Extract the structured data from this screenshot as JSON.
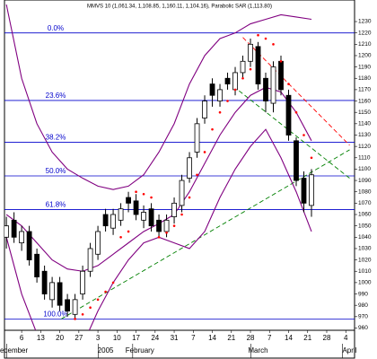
{
  "chart_data": {
    "type": "candlestick",
    "title": "MMVS 10 (1,061.34, 1,108.85, 1,160.11, 1,104.16), Parabolic SAR (1,113.80)",
    "xlim": [
      -4.5,
      87.3
    ],
    "ylim": [
      958,
      1249
    ],
    "yticks": [
      960,
      970,
      980,
      990,
      1000,
      1010,
      1020,
      1030,
      1040,
      1050,
      1060,
      1070,
      1080,
      1090,
      1100,
      1110,
      1120,
      1130,
      1140,
      1150,
      1160,
      1170,
      1180,
      1190,
      1200,
      1210,
      1220,
      1230
    ],
    "xticks": [
      {
        "value": 0,
        "label": "6"
      },
      {
        "value": 5,
        "label": "13"
      },
      {
        "value": 10,
        "label": "20"
      },
      {
        "value": 15,
        "label": "27"
      },
      {
        "value": 20,
        "label": "3"
      },
      {
        "value": 25,
        "label": "10"
      },
      {
        "value": 30,
        "label": "17"
      },
      {
        "value": 35,
        "label": "24"
      },
      {
        "value": 40,
        "label": "31"
      },
      {
        "value": 45,
        "label": "7"
      },
      {
        "value": 50,
        "label": "14"
      },
      {
        "value": 55,
        "label": "21"
      },
      {
        "value": 60,
        "label": "28"
      },
      {
        "value": 65,
        "label": "7"
      },
      {
        "value": 70,
        "label": "14"
      },
      {
        "value": 75,
        "label": "21"
      },
      {
        "value": 80,
        "label": "28"
      },
      {
        "value": 85,
        "label": "4"
      }
    ],
    "month_labels": [
      {
        "value": -2,
        "label": "ecember"
      },
      {
        "value": 22,
        "label": "2005"
      },
      {
        "value": 31,
        "label": "February"
      },
      {
        "value": 62,
        "label": "March"
      },
      {
        "value": 86,
        "label": "April"
      }
    ],
    "x": [
      -4,
      -2,
      0,
      2,
      4,
      6,
      8,
      10,
      12,
      14,
      16,
      18,
      20,
      22,
      24,
      26,
      28,
      30,
      32,
      34,
      36,
      38,
      40,
      42,
      44,
      46,
      48,
      50,
      52,
      54,
      56,
      58,
      60,
      62,
      64,
      66,
      68,
      70,
      72,
      74,
      76
    ],
    "open": [
      1040,
      1055,
      1035,
      1045,
      1025,
      1010,
      985,
      1000,
      985,
      972,
      990,
      1010,
      1025,
      1060,
      1048,
      1055,
      1075,
      1072,
      1055,
      1065,
      1055,
      1045,
      1058,
      1068,
      1092,
      1115,
      1145,
      1175,
      1160,
      1180,
      1170,
      1185,
      1195,
      1208,
      1180,
      1158,
      1195,
      1165,
      1125,
      1092,
      1068
    ],
    "high": [
      1058,
      1062,
      1050,
      1050,
      1030,
      1015,
      1005,
      1005,
      990,
      990,
      1015,
      1035,
      1050,
      1065,
      1065,
      1070,
      1080,
      1078,
      1068,
      1070,
      1060,
      1060,
      1075,
      1095,
      1115,
      1145,
      1165,
      1180,
      1175,
      1185,
      1190,
      1200,
      1215,
      1212,
      1185,
      1195,
      1200,
      1170,
      1128,
      1098,
      1100
    ],
    "low": [
      1030,
      1035,
      1028,
      1015,
      1000,
      985,
      978,
      975,
      970,
      968,
      985,
      1005,
      1020,
      1045,
      1042,
      1050,
      1062,
      1055,
      1048,
      1045,
      1040,
      1040,
      1052,
      1062,
      1088,
      1110,
      1140,
      1155,
      1155,
      1170,
      1165,
      1180,
      1190,
      1170,
      1150,
      1150,
      1165,
      1125,
      1085,
      1062,
      1058
    ],
    "close": [
      1050,
      1040,
      1045,
      1020,
      1005,
      990,
      1000,
      980,
      975,
      985,
      1010,
      1030,
      1045,
      1050,
      1060,
      1065,
      1070,
      1060,
      1062,
      1050,
      1045,
      1055,
      1070,
      1090,
      1110,
      1140,
      1160,
      1165,
      1170,
      1175,
      1185,
      1195,
      1210,
      1175,
      1160,
      1190,
      1170,
      1130,
      1090,
      1070,
      1095
    ],
    "up_color": "#ffffff",
    "down_color": "#000000",
    "bands": {
      "color": "#800080",
      "x": [
        -4,
        0,
        4,
        8,
        12,
        16,
        20,
        24,
        28,
        32,
        36,
        40,
        44,
        48,
        52,
        56,
        60,
        64,
        68,
        72,
        76
      ],
      "upper": [
        1245,
        1180,
        1140,
        1115,
        1100,
        1092,
        1085,
        1082,
        1085,
        1095,
        1115,
        1140,
        1175,
        1200,
        1215,
        1220,
        1228,
        1232,
        1236,
        1234,
        1232
      ],
      "middle": [
        1060,
        1050,
        1035,
        1020,
        1012,
        1010,
        1015,
        1025,
        1035,
        1045,
        1052,
        1060,
        1080,
        1105,
        1130,
        1150,
        1165,
        1172,
        1168,
        1150,
        1125
      ],
      "lower": [
        1040,
        990,
        955,
        940,
        935,
        945,
        975,
        1000,
        1020,
        1035,
        1040,
        1035,
        1030,
        1045,
        1075,
        1100,
        1120,
        1135,
        1110,
        1080,
        1045
      ]
    },
    "sar": {
      "color": "#ff0000",
      "x": [
        14,
        16,
        18,
        20,
        22,
        24,
        26,
        28,
        30,
        32,
        34,
        36,
        38,
        40,
        42,
        44,
        46,
        48,
        50,
        52,
        54,
        56,
        58,
        60,
        62,
        64,
        66,
        68,
        70,
        72,
        74,
        76
      ],
      "values": [
        968,
        972,
        978,
        985,
        992,
        1000,
        1040,
        1045,
        1080,
        1078,
        1075,
        1040,
        1044,
        1050,
        1060,
        1075,
        1095,
        1115,
        1135,
        1150,
        1160,
        1170,
        1180,
        1188,
        1218,
        1215,
        1210,
        1195,
        1175,
        1150,
        1130,
        1110
      ]
    },
    "fib_levels": {
      "color": "#0000cc",
      "levels": [
        {
          "value": 1220,
          "label": "0.0%"
        },
        {
          "value": 1160.5,
          "label": "23.6%"
        },
        {
          "value": 1123.7,
          "label": "38.2%"
        },
        {
          "value": 1094,
          "label": "50.0%"
        },
        {
          "value": 1064.3,
          "label": "61.8%"
        },
        {
          "value": 968,
          "label": "100.0%"
        }
      ]
    },
    "trendlines": [
      {
        "color": "#008000",
        "x": [
          10.4,
          86
        ],
        "y": [
          968,
          1117
        ]
      },
      {
        "color": "#008000",
        "x": [
          57,
          86
        ],
        "y": [
          1169,
          1092
        ]
      },
      {
        "color": "#ff0000",
        "x": [
          58,
          86
        ],
        "y": [
          1216,
          1121
        ]
      }
    ]
  }
}
